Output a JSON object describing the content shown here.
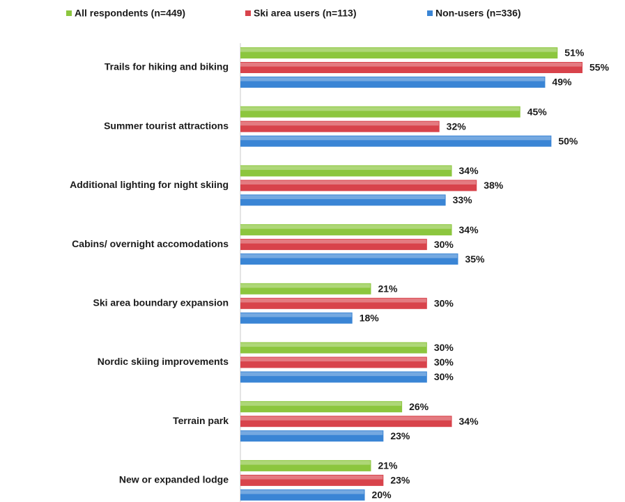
{
  "chart_data": {
    "type": "bar",
    "orientation": "horizontal",
    "legend": "top",
    "categories": [
      "Trails for hiking and biking",
      "Summer tourist attractions",
      "Additional lighting for night skiing",
      "Cabins/ overnight accomodations",
      "Ski area boundary expansion",
      "Nordic skiing improvements",
      "Terrain park",
      "New or expanded lodge"
    ],
    "series": [
      {
        "name": "All respondents (n=449)",
        "color": "#8cc63e",
        "values": [
          51,
          45,
          34,
          34,
          21,
          30,
          26,
          21
        ],
        "value_labels": [
          "51%",
          "45%",
          "34%",
          "34%",
          "21%",
          "30%",
          "26%",
          "21%"
        ]
      },
      {
        "name": "Ski area users (n=113)",
        "color": "#d8434b",
        "values": [
          55,
          32,
          38,
          30,
          30,
          30,
          34,
          23
        ],
        "value_labels": [
          "55%",
          "32%",
          "38%",
          "30%",
          "30%",
          "30%",
          "34%",
          "23%"
        ]
      },
      {
        "name": "Non-users (n=336)",
        "color": "#3a85d5",
        "values": [
          49,
          50,
          33,
          35,
          18,
          30,
          23,
          20
        ],
        "value_labels": [
          "49%",
          "50%",
          "33%",
          "35%",
          "18%",
          "30%",
          "23%",
          "20%"
        ]
      }
    ]
  }
}
